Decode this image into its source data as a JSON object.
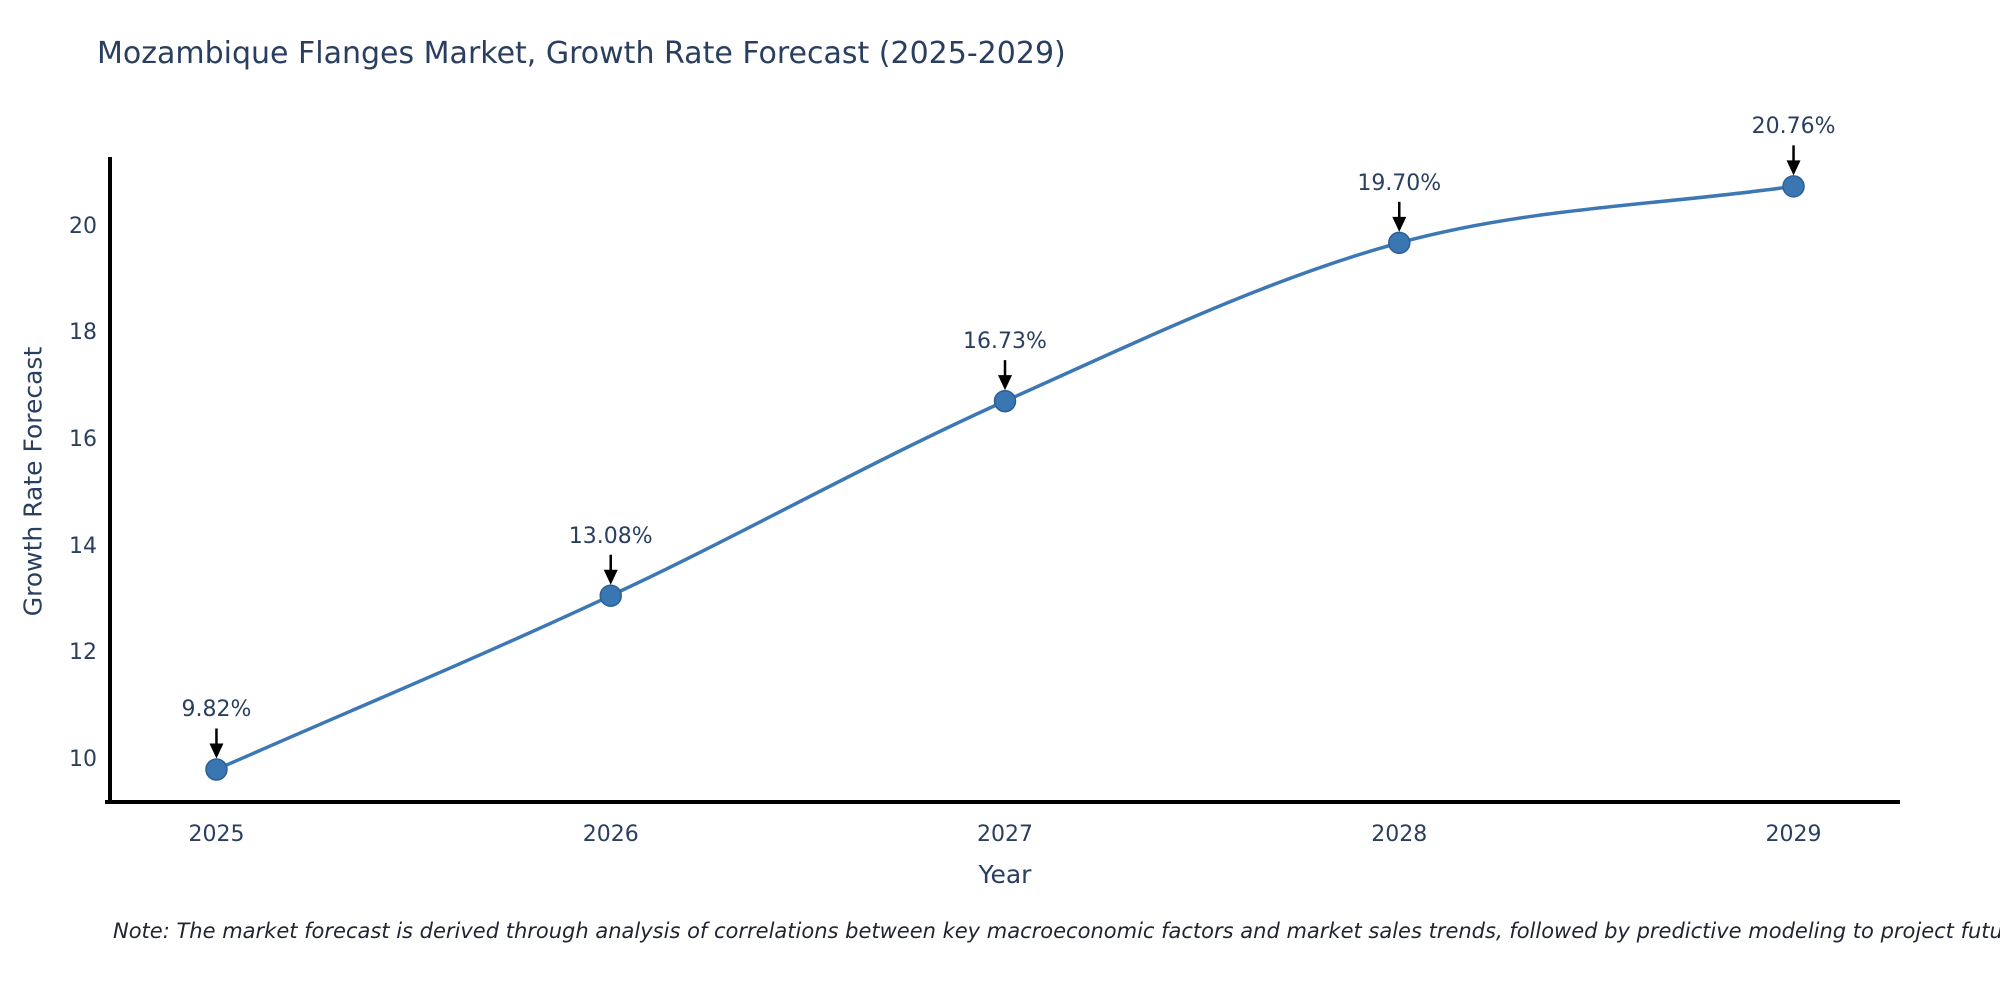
{
  "title": "Mozambique Flanges Market, Growth Rate Forecast (2025-2029)",
  "note": "Note: The market forecast is derived through analysis of correlations between key macroeconomic factors and market sales trends, followed by predictive modeling to project future sales",
  "chart_data": {
    "type": "line",
    "title": "Mozambique Flanges Market, Growth Rate Forecast (2025-2029)",
    "xlabel": "Year",
    "ylabel": "Growth Rate Forecast",
    "x": [
      2025,
      2026,
      2027,
      2028,
      2029
    ],
    "values": [
      9.82,
      13.08,
      16.73,
      19.7,
      20.76
    ],
    "point_labels": [
      "9.82%",
      "13.08%",
      "16.73%",
      "19.70%",
      "20.76%"
    ],
    "xticks": [
      "2025",
      "2026",
      "2027",
      "2028",
      "2029"
    ],
    "yticks": [
      10,
      12,
      14,
      16,
      18,
      20
    ],
    "xlim": [
      2024.73,
      2029.27
    ],
    "ylim": [
      9.21,
      21.31
    ],
    "grid": false,
    "legend": "none",
    "curve": "spline",
    "colors": {
      "line": "#3d78b4",
      "marker_fill": "#3a76b2",
      "marker_edge": "#2d5f96",
      "axis": "#000000",
      "text": "#2a3f5f",
      "annotation_arrow": "#000000",
      "note_text": "#1f2430",
      "background": "#ffffff"
    }
  }
}
